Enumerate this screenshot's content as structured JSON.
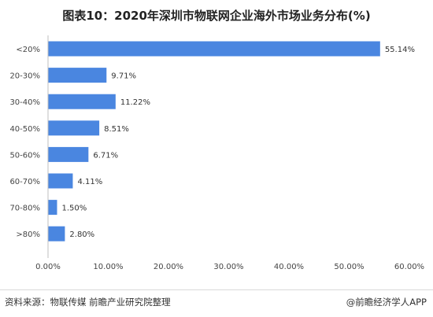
{
  "title": "图表10：2020年深圳市物联网企业海外市场业务分布(%)",
  "footer": {
    "source": "资料来源：物联传媒 前瞻产业研究院整理",
    "brand": "@前瞻经济学人APP"
  },
  "colors": {
    "bar": "#4a86e0",
    "axis": "#bfbfbf"
  },
  "chart_data": {
    "type": "bar",
    "orientation": "horizontal",
    "title": "图表10：2020年深圳市物联网企业海外市场业务分布(%)",
    "categories": [
      "<20%",
      "20-30%",
      "30-40%",
      "40-50%",
      "50-60%",
      "60-70%",
      "70-80%",
      ">80%"
    ],
    "values": [
      55.14,
      9.71,
      11.22,
      8.51,
      6.71,
      4.11,
      1.5,
      2.8
    ],
    "value_labels": [
      "55.14%",
      "9.71%",
      "11.22%",
      "8.51%",
      "6.71%",
      "4.11%",
      "1.50%",
      "2.80%"
    ],
    "xlim": [
      0,
      60
    ],
    "xticks": [
      0,
      10,
      20,
      30,
      40,
      50,
      60
    ],
    "xtick_labels": [
      "0.00%",
      "10.00%",
      "20.00%",
      "30.00%",
      "40.00%",
      "50.00%",
      "60.00%"
    ],
    "xlabel": "",
    "ylabel": "",
    "grid": false,
    "legend": "none"
  }
}
